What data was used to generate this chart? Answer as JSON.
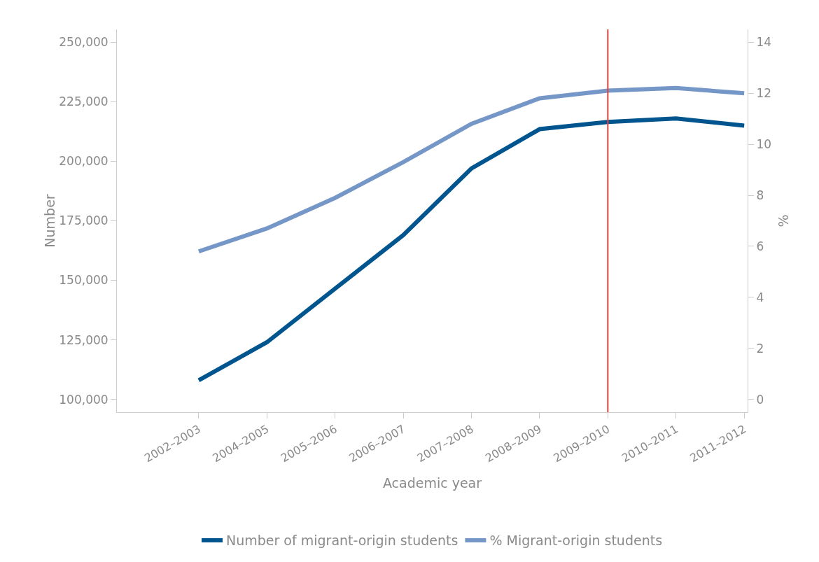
{
  "chart_data": {
    "type": "line",
    "categories": [
      "2002–2003",
      "2004–2005",
      "2005–2006",
      "2006–2007",
      "2007–2008",
      "2008–2009",
      "2009–2010",
      "2010–2011",
      "2011–2012"
    ],
    "series": [
      {
        "name": "Number of migrant-origin students",
        "color": "#00558f",
        "values": [
          108000,
          124000,
          146500,
          169000,
          197000,
          213500,
          216500,
          218000,
          215000
        ]
      },
      {
        "name": "% Migrant-origin students",
        "color": "#7597c8",
        "axis": "y2",
        "values": [
          5.8,
          6.7,
          7.9,
          9.3,
          10.8,
          11.8,
          12.1,
          12.2,
          12.0
        ]
      }
    ],
    "xlabel": "Academic year",
    "ylabel": "Number",
    "y2label": "%",
    "ylim": [
      94600,
      255400
    ],
    "yticks": [
      {
        "value": 100000,
        "label": "100,000"
      },
      {
        "value": 125000,
        "label": "125,000"
      },
      {
        "value": 150000,
        "label": "150,000"
      },
      {
        "value": 175000,
        "label": "175,000"
      },
      {
        "value": 200000,
        "label": "200,000"
      },
      {
        "value": 225000,
        "label": "225,000"
      },
      {
        "value": 250000,
        "label": "250,000"
      }
    ],
    "y2lim": [
      -0.5,
      14.5
    ],
    "y2ticks": [
      0,
      2,
      4,
      6,
      8,
      10,
      12,
      14
    ],
    "ref_lines": [
      {
        "axis": "x",
        "value": "2009–2010",
        "color": "#e8413c"
      }
    ],
    "grid": false,
    "legend": "bottom",
    "marker": "none",
    "line_style": "solid"
  }
}
